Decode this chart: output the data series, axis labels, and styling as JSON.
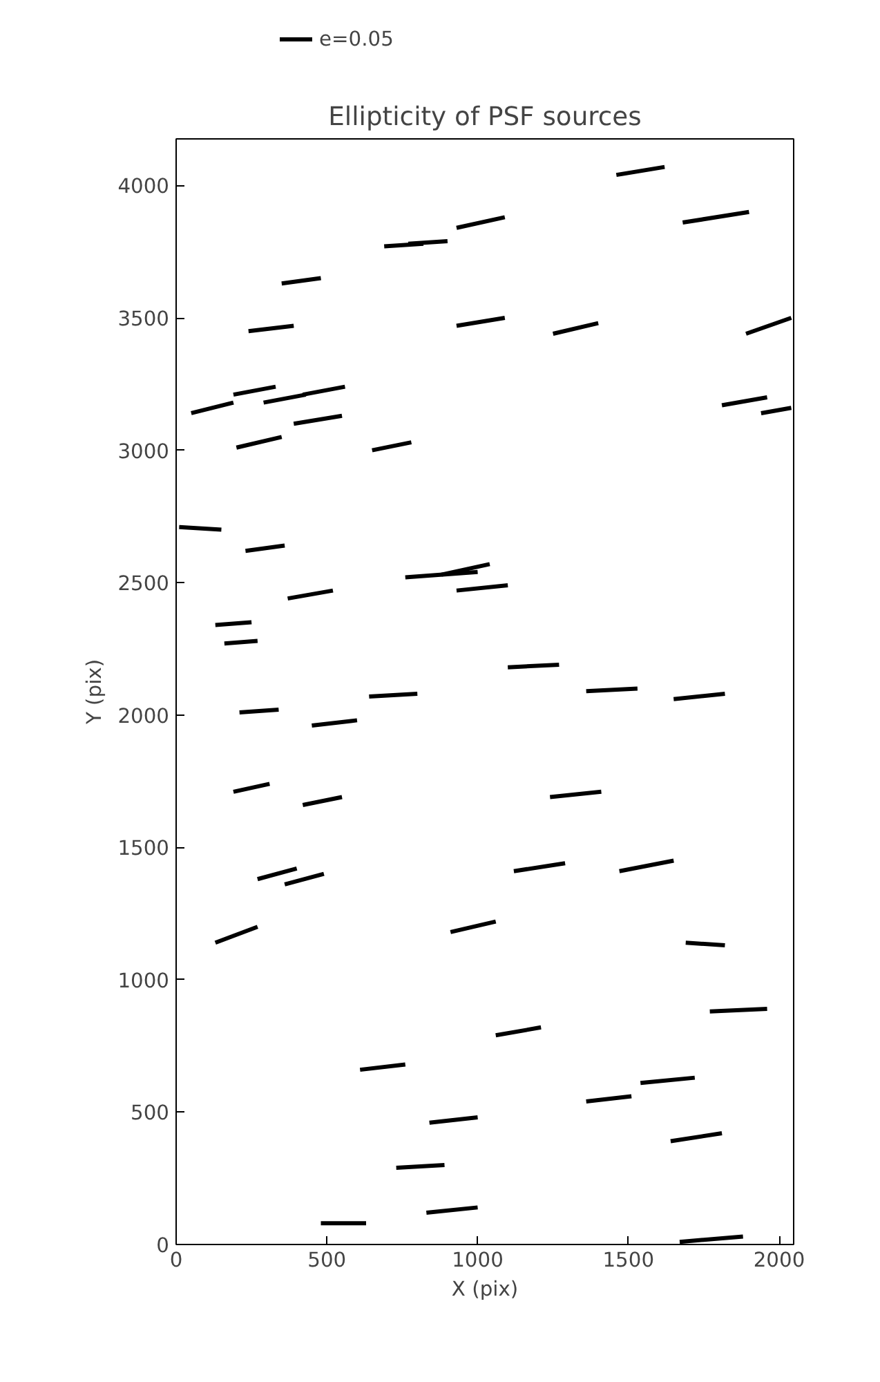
{
  "chart_data": {
    "type": "line",
    "title": "Ellipticity of PSF sources",
    "xlabel": "X (pix)",
    "ylabel": "Y (pix)",
    "xlim": [
      0,
      2048
    ],
    "ylim": [
      0,
      4176
    ],
    "xticks": [
      0,
      500,
      1000,
      1500,
      2000
    ],
    "yticks": [
      0,
      500,
      1000,
      1500,
      2000,
      2500,
      3000,
      3500,
      4000
    ],
    "grid": false,
    "legend": "top left",
    "line_style": "solid",
    "series": [
      {
        "name": "e=0.05",
        "color": "#000000",
        "x": [
          1460,
          1620
        ],
        "values": [
          4040,
          4070
        ]
      },
      {
        "color": "#000000",
        "x": [
          1680,
          1900
        ],
        "values": [
          3860,
          3900
        ]
      },
      {
        "color": "#000000",
        "x": [
          690,
          820
        ],
        "values": [
          3770,
          3780
        ]
      },
      {
        "color": "#000000",
        "x": [
          770,
          900
        ],
        "values": [
          3780,
          3790
        ]
      },
      {
        "color": "#000000",
        "x": [
          930,
          1090
        ],
        "values": [
          3840,
          3880
        ]
      },
      {
        "color": "#000000",
        "x": [
          350,
          480
        ],
        "values": [
          3630,
          3650
        ]
      },
      {
        "color": "#000000",
        "x": [
          240,
          390
        ],
        "values": [
          3450,
          3470
        ]
      },
      {
        "color": "#000000",
        "x": [
          930,
          1090
        ],
        "values": [
          3470,
          3500
        ]
      },
      {
        "color": "#000000",
        "x": [
          1250,
          1400
        ],
        "values": [
          3440,
          3480
        ]
      },
      {
        "color": "#000000",
        "x": [
          1890,
          2040
        ],
        "values": [
          3440,
          3500
        ]
      },
      {
        "color": "#000000",
        "x": [
          50,
          190
        ],
        "values": [
          3140,
          3180
        ]
      },
      {
        "color": "#000000",
        "x": [
          190,
          330
        ],
        "values": [
          3210,
          3240
        ]
      },
      {
        "color": "#000000",
        "x": [
          290,
          430
        ],
        "values": [
          3180,
          3210
        ]
      },
      {
        "color": "#000000",
        "x": [
          420,
          560
        ],
        "values": [
          3210,
          3240
        ]
      },
      {
        "color": "#000000",
        "x": [
          390,
          550
        ],
        "values": [
          3100,
          3130
        ]
      },
      {
        "color": "#000000",
        "x": [
          200,
          350
        ],
        "values": [
          3010,
          3050
        ]
      },
      {
        "color": "#000000",
        "x": [
          650,
          780
        ],
        "values": [
          3000,
          3030
        ]
      },
      {
        "color": "#000000",
        "x": [
          1810,
          1960
        ],
        "values": [
          3170,
          3200
        ]
      },
      {
        "color": "#000000",
        "x": [
          1940,
          2040
        ],
        "values": [
          3140,
          3160
        ]
      },
      {
        "color": "#000000",
        "x": [
          10,
          150
        ],
        "values": [
          2710,
          2700
        ]
      },
      {
        "color": "#000000",
        "x": [
          230,
          360
        ],
        "values": [
          2620,
          2640
        ]
      },
      {
        "color": "#000000",
        "x": [
          760,
          1000
        ],
        "values": [
          2520,
          2540
        ]
      },
      {
        "color": "#000000",
        "x": [
          880,
          1040
        ],
        "values": [
          2530,
          2570
        ]
      },
      {
        "color": "#000000",
        "x": [
          930,
          1100
        ],
        "values": [
          2470,
          2490
        ]
      },
      {
        "color": "#000000",
        "x": [
          370,
          520
        ],
        "values": [
          2440,
          2470
        ]
      },
      {
        "color": "#000000",
        "x": [
          130,
          250
        ],
        "values": [
          2340,
          2350
        ]
      },
      {
        "color": "#000000",
        "x": [
          160,
          270
        ],
        "values": [
          2270,
          2280
        ]
      },
      {
        "color": "#000000",
        "x": [
          1100,
          1270
        ],
        "values": [
          2180,
          2190
        ]
      },
      {
        "color": "#000000",
        "x": [
          1360,
          1530
        ],
        "values": [
          2090,
          2100
        ]
      },
      {
        "color": "#000000",
        "x": [
          1650,
          1820
        ],
        "values": [
          2060,
          2080
        ]
      },
      {
        "color": "#000000",
        "x": [
          210,
          340
        ],
        "values": [
          2010,
          2020
        ]
      },
      {
        "color": "#000000",
        "x": [
          640,
          800
        ],
        "values": [
          2070,
          2080
        ]
      },
      {
        "color": "#000000",
        "x": [
          450,
          600
        ],
        "values": [
          1960,
          1980
        ]
      },
      {
        "color": "#000000",
        "x": [
          190,
          310
        ],
        "values": [
          1710,
          1740
        ]
      },
      {
        "color": "#000000",
        "x": [
          420,
          550
        ],
        "values": [
          1660,
          1690
        ]
      },
      {
        "color": "#000000",
        "x": [
          1240,
          1410
        ],
        "values": [
          1690,
          1710
        ]
      },
      {
        "color": "#000000",
        "x": [
          270,
          400
        ],
        "values": [
          1380,
          1420
        ]
      },
      {
        "color": "#000000",
        "x": [
          360,
          490
        ],
        "values": [
          1360,
          1400
        ]
      },
      {
        "color": "#000000",
        "x": [
          1120,
          1290
        ],
        "values": [
          1410,
          1440
        ]
      },
      {
        "color": "#000000",
        "x": [
          1470,
          1650
        ],
        "values": [
          1410,
          1450
        ]
      },
      {
        "color": "#000000",
        "x": [
          130,
          270
        ],
        "values": [
          1140,
          1200
        ]
      },
      {
        "color": "#000000",
        "x": [
          910,
          1060
        ],
        "values": [
          1180,
          1220
        ]
      },
      {
        "color": "#000000",
        "x": [
          1690,
          1820
        ],
        "values": [
          1140,
          1130
        ]
      },
      {
        "color": "#000000",
        "x": [
          1770,
          1960
        ],
        "values": [
          880,
          890
        ]
      },
      {
        "color": "#000000",
        "x": [
          1060,
          1210
        ],
        "values": [
          790,
          820
        ]
      },
      {
        "color": "#000000",
        "x": [
          610,
          760
        ],
        "values": [
          660,
          680
        ]
      },
      {
        "color": "#000000",
        "x": [
          1360,
          1510
        ],
        "values": [
          540,
          560
        ]
      },
      {
        "color": "#000000",
        "x": [
          1540,
          1720
        ],
        "values": [
          610,
          630
        ]
      },
      {
        "color": "#000000",
        "x": [
          840,
          1000
        ],
        "values": [
          460,
          480
        ]
      },
      {
        "color": "#000000",
        "x": [
          1640,
          1810
        ],
        "values": [
          390,
          420
        ]
      },
      {
        "color": "#000000",
        "x": [
          730,
          890
        ],
        "values": [
          290,
          300
        ]
      },
      {
        "color": "#000000",
        "x": [
          830,
          1000
        ],
        "values": [
          120,
          140
        ]
      },
      {
        "color": "#000000",
        "x": [
          480,
          630
        ],
        "values": [
          80,
          80
        ]
      },
      {
        "color": "#000000",
        "x": [
          1670,
          1880
        ],
        "values": [
          10,
          30
        ]
      }
    ]
  }
}
